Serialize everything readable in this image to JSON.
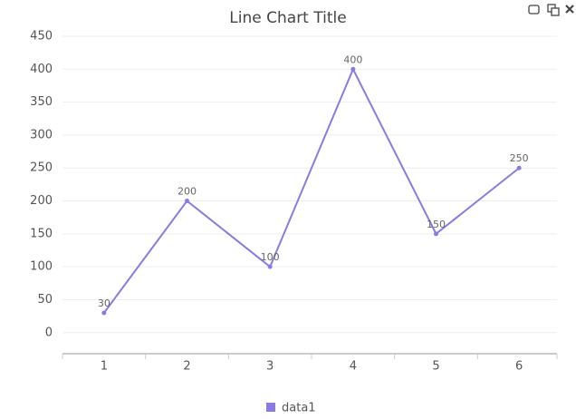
{
  "chart_data": {
    "type": "line",
    "title": "Line Chart Title",
    "categories": [
      "1",
      "2",
      "3",
      "4",
      "5",
      "6"
    ],
    "series": [
      {
        "name": "data1",
        "color": "#8a7be0",
        "values": [
          30,
          200,
          100,
          400,
          150,
          250
        ]
      }
    ],
    "ylim": [
      -32,
      450
    ],
    "yticks": [
      0,
      50,
      100,
      150,
      200,
      250,
      300,
      350,
      400,
      450
    ],
    "grid": true,
    "legend": "bottom"
  }
}
